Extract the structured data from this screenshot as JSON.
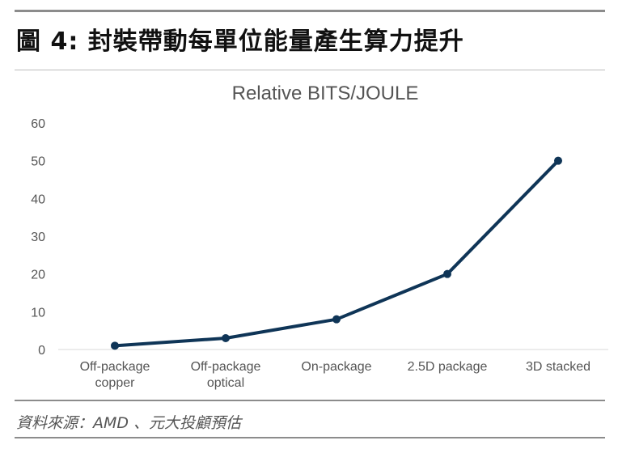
{
  "figure": {
    "title": "圖 4: 封裝帶動每單位能量產生算力提升",
    "source": "資料來源：AMD 、元大投顧預估"
  },
  "colors": {
    "line": "#0f3557",
    "text": "#555555",
    "title": "#555555"
  },
  "chart_data": {
    "type": "line",
    "title": "Relative BITS/JOULE",
    "xlabel": "",
    "ylabel": "",
    "categories": [
      "Off-package copper",
      "Off-package optical",
      "On-package",
      "2.5D package",
      "3D stacked"
    ],
    "category_lines": [
      [
        "Off-package",
        "copper"
      ],
      [
        "Off-package",
        "optical"
      ],
      [
        "On-package"
      ],
      [
        "2.5D package"
      ],
      [
        "3D stacked"
      ]
    ],
    "series": [
      {
        "values": [
          1,
          3,
          8,
          20,
          50
        ]
      }
    ],
    "ylim": [
      0,
      60
    ],
    "yticks": [
      0,
      10,
      20,
      30,
      40,
      50,
      60
    ],
    "grid": false,
    "legend": "none"
  }
}
